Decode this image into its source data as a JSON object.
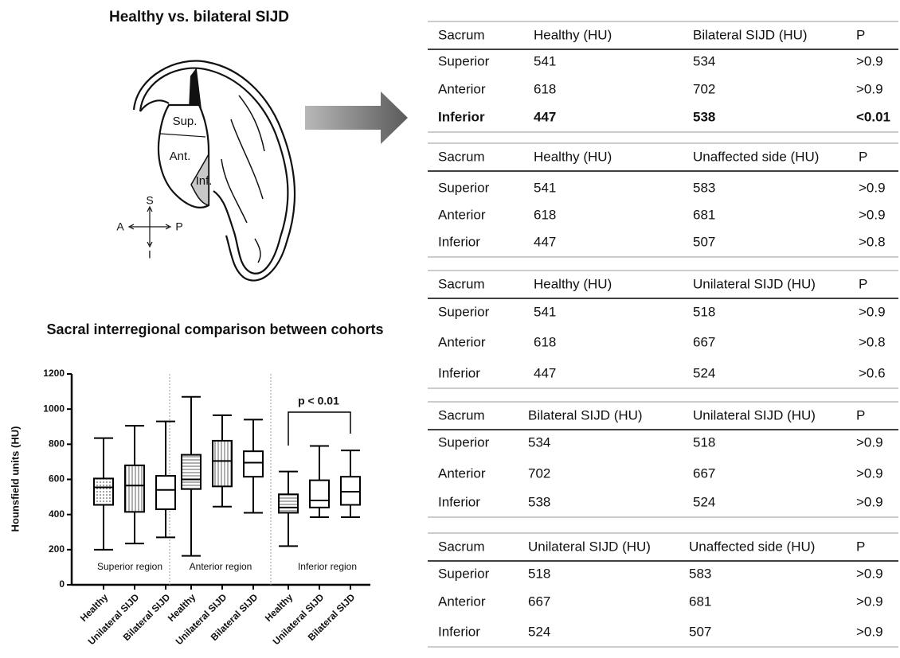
{
  "figure_title": "Healthy vs. bilateral SIJD",
  "diagram": {
    "regions": [
      "Sup.",
      "Ant.",
      "Inf."
    ],
    "compass": [
      "S",
      "A",
      "P",
      "I"
    ]
  },
  "tables": [
    {
      "header": [
        "Sacrum",
        "Healthy (HU)",
        "Bilateral SIJD (HU)",
        "P"
      ],
      "rows": [
        [
          "Superior",
          "541",
          "534",
          ">0.9"
        ],
        [
          "Anterior",
          "618",
          "702",
          ">0.9"
        ],
        [
          "Inferior",
          "447",
          "538",
          "<0.01"
        ]
      ],
      "bold_row": 2
    },
    {
      "header": [
        "Sacrum",
        "Healthy (HU)",
        "Unaffected side (HU)",
        "P"
      ],
      "rows": [
        [
          "Superior",
          "541",
          "583",
          ">0.9"
        ],
        [
          "Anterior",
          "618",
          "681",
          ">0.9"
        ],
        [
          "Inferior",
          "447",
          "507",
          ">0.8"
        ]
      ]
    },
    {
      "header": [
        "Sacrum",
        "Healthy (HU)",
        "Unilateral SIJD (HU)",
        "P"
      ],
      "rows": [
        [
          "Superior",
          "541",
          "518",
          ">0.9"
        ],
        [
          "Anterior",
          "618",
          "667",
          ">0.8"
        ],
        [
          "Inferior",
          "447",
          "524",
          ">0.6"
        ]
      ]
    },
    {
      "header": [
        "Sacrum",
        "Bilateral SIJD (HU)",
        "Unilateral SIJD (HU)",
        "P"
      ],
      "rows": [
        [
          "Superior",
          "534",
          "518",
          ">0.9"
        ],
        [
          "Anterior",
          "702",
          "667",
          ">0.9"
        ],
        [
          "Inferior",
          "538",
          "524",
          ">0.9"
        ]
      ]
    },
    {
      "header": [
        "Sacrum",
        "Unilateral SIJD (HU)",
        "Unaffected side (HU)",
        "P"
      ],
      "rows": [
        [
          "Superior",
          "518",
          "583",
          ">0.9"
        ],
        [
          "Anterior",
          "667",
          "681",
          ">0.9"
        ],
        [
          "Inferior",
          "524",
          "507",
          ">0.9"
        ]
      ]
    }
  ],
  "chart_data": {
    "type": "box",
    "title": "Sacral interregional comparison between cohorts",
    "y_label": "Hounsfield units (HU)",
    "ylim": [
      0,
      1200
    ],
    "yticks": [
      0,
      200,
      400,
      600,
      800,
      1000,
      1200
    ],
    "annotation": "p < 0.01",
    "groups": [
      {
        "name": "Superior region",
        "categories": [
          "Healthy",
          "Unilateral SIJD",
          "Bilateral SIJD"
        ],
        "boxes": [
          {
            "min": 200,
            "q1": 455,
            "median": 555,
            "q3": 605,
            "max": 835,
            "fill": "dots"
          },
          {
            "min": 235,
            "q1": 415,
            "median": 565,
            "q3": 680,
            "max": 905,
            "fill": "vertical"
          },
          {
            "min": 270,
            "q1": 430,
            "median": 540,
            "q3": 620,
            "max": 930,
            "fill": "none"
          }
        ]
      },
      {
        "name": "Anterior region",
        "categories": [
          "Healthy",
          "Unilateral SIJD",
          "Bilateral SIJD"
        ],
        "boxes": [
          {
            "min": 165,
            "q1": 545,
            "median": 600,
            "q3": 740,
            "max": 1070,
            "fill": "horizontal"
          },
          {
            "min": 445,
            "q1": 560,
            "median": 705,
            "q3": 820,
            "max": 965,
            "fill": "vertical"
          },
          {
            "min": 410,
            "q1": 615,
            "median": 695,
            "q3": 760,
            "max": 940,
            "fill": "none"
          }
        ]
      },
      {
        "name": "Inferior region",
        "categories": [
          "Healthy",
          "Unilateral SIJD",
          "Bilateral SIJD"
        ],
        "boxes": [
          {
            "min": 220,
            "q1": 410,
            "median": 440,
            "q3": 515,
            "max": 645,
            "fill": "horizontal"
          },
          {
            "min": 385,
            "q1": 440,
            "median": 480,
            "q3": 595,
            "max": 790,
            "fill": "none"
          },
          {
            "min": 385,
            "q1": 455,
            "median": 530,
            "q3": 615,
            "max": 765,
            "fill": "none"
          }
        ]
      }
    ]
  }
}
